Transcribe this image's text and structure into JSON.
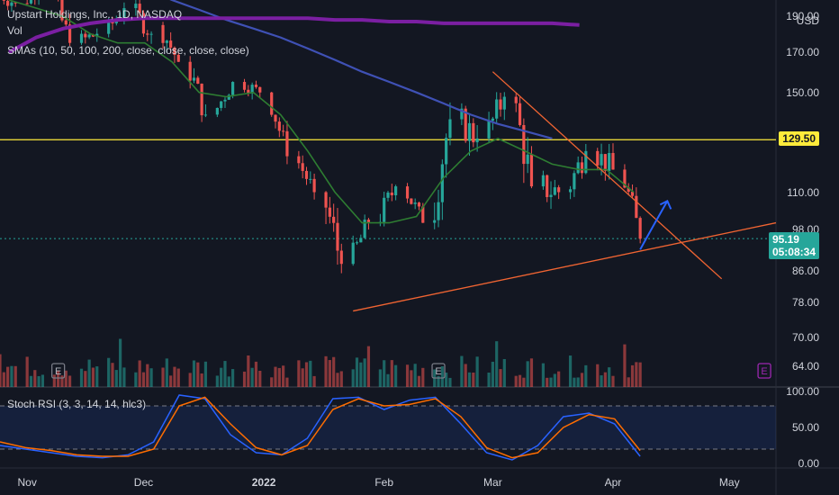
{
  "header": {
    "symbol_line": "Upstart Holdings, Inc., 1D, NASDAQ",
    "vol_label": "Vol",
    "sma_label": "SMAs (10, 50, 100, 200, close, close, close, close)"
  },
  "price_axis": {
    "currency": "USD",
    "ticks": [
      "190.00",
      "170.00",
      "150.00",
      "129.50",
      "110.00",
      "98.00",
      "86.00",
      "78.00",
      "70.00",
      "64.00"
    ],
    "resistance_level": "129.50",
    "last_price": "95.19",
    "countdown": "05:08:34"
  },
  "rsi_panel": {
    "label": "Stoch RSI (3, 3, 14, 14, hlc3)",
    "ticks": [
      "100.00",
      "50.00",
      "0.00"
    ],
    "upper_band": 80,
    "lower_band": 20
  },
  "time_axis": {
    "labels": [
      "Nov",
      "Dec",
      "2022",
      "Feb",
      "Mar",
      "Apr",
      "May"
    ]
  },
  "earnings_markers": [
    "E",
    "E",
    "E"
  ],
  "colors": {
    "background": "#131722",
    "up": "#26a69a",
    "down": "#ef5350",
    "resistance": "#ffeb3b",
    "trendline": "#f06432",
    "sma_fast": "#2e7d32",
    "sma_mid": "#3f51b5",
    "sma_slow": "#7b1fa2",
    "stoch_k": "#2962ff",
    "stoch_d": "#ff6d00",
    "arrow": "#2962ff"
  },
  "chart_data": {
    "type": "candlestick",
    "title": "Upstart Holdings, Inc., 1D, NASDAQ",
    "y_unit": "USD",
    "log_scale": true,
    "ylim": [
      60,
      195
    ],
    "horizontal_level": 129.5,
    "last_close": 95.19,
    "x_range": [
      "2021-10-25",
      "2022-05-13"
    ],
    "candles_weekly_summary": [
      {
        "date": "2021-10-25",
        "open": 205,
        "high": 220,
        "low": 190,
        "close": 198
      },
      {
        "date": "2021-11-01",
        "open": 198,
        "high": 215,
        "low": 188,
        "close": 210
      },
      {
        "date": "2021-11-08",
        "open": 205,
        "high": 215,
        "low": 170,
        "close": 175
      },
      {
        "date": "2021-11-15",
        "open": 175,
        "high": 195,
        "low": 165,
        "close": 180
      },
      {
        "date": "2021-11-22",
        "open": 180,
        "high": 200,
        "low": 170,
        "close": 195
      },
      {
        "date": "2021-11-29",
        "open": 195,
        "high": 205,
        "low": 170,
        "close": 180
      },
      {
        "date": "2021-12-06",
        "open": 185,
        "high": 195,
        "low": 160,
        "close": 165
      },
      {
        "date": "2021-12-13",
        "open": 165,
        "high": 168,
        "low": 132,
        "close": 140
      },
      {
        "date": "2021-12-20",
        "open": 140,
        "high": 160,
        "low": 135,
        "close": 155
      },
      {
        "date": "2021-12-27",
        "open": 155,
        "high": 165,
        "low": 145,
        "close": 150
      },
      {
        "date": "2022-01-03",
        "open": 150,
        "high": 152,
        "low": 120,
        "close": 123
      },
      {
        "date": "2022-01-10",
        "open": 123,
        "high": 125,
        "low": 105,
        "close": 110
      },
      {
        "date": "2022-01-17",
        "open": 110,
        "high": 112,
        "low": 76,
        "close": 88
      },
      {
        "date": "2022-01-24",
        "open": 88,
        "high": 105,
        "low": 84,
        "close": 100
      },
      {
        "date": "2022-01-31",
        "open": 100,
        "high": 118,
        "low": 95,
        "close": 112
      },
      {
        "date": "2022-02-07",
        "open": 112,
        "high": 116,
        "low": 96,
        "close": 100
      },
      {
        "date": "2022-02-14",
        "open": 100,
        "high": 150,
        "low": 98,
        "close": 138
      },
      {
        "date": "2022-02-21",
        "open": 138,
        "high": 145,
        "low": 105,
        "close": 130
      },
      {
        "date": "2022-02-28",
        "open": 130,
        "high": 162,
        "low": 125,
        "close": 148
      },
      {
        "date": "2022-03-07",
        "open": 148,
        "high": 150,
        "low": 100,
        "close": 112
      },
      {
        "date": "2022-03-14",
        "open": 112,
        "high": 118,
        "low": 86,
        "close": 110
      },
      {
        "date": "2022-03-21",
        "open": 110,
        "high": 135,
        "low": 105,
        "close": 125
      },
      {
        "date": "2022-03-28",
        "open": 125,
        "high": 130,
        "low": 102,
        "close": 118
      },
      {
        "date": "2022-04-04",
        "open": 118,
        "high": 120,
        "low": 92,
        "close": 95.19
      }
    ],
    "volume_bars_note": "volume histogram in lower part of main pane",
    "sma_series": [
      {
        "period": "SMA fast",
        "values": [
          200,
          195,
          190,
          180,
          175,
          175,
          165,
          150,
          148,
          150,
          140,
          125,
          110,
          100,
          100,
          102,
          115,
          125,
          130,
          125,
          120,
          118,
          118,
          110
        ]
      },
      {
        "period": "SMA mid",
        "values": [
          240,
          232,
          228,
          222,
          215,
          208,
          200,
          194,
          188,
          183,
          178,
          172,
          166,
          160,
          155,
          150,
          145,
          140,
          136,
          133,
          130,
          null,
          null,
          null
        ]
      },
      {
        "period": "SMA slow",
        "values": [
          170,
          178,
          183,
          186,
          188,
          189,
          189,
          189,
          189,
          189,
          189,
          189,
          188,
          188,
          187,
          187,
          186,
          186,
          186,
          186,
          186,
          185,
          null,
          null
        ]
      }
    ],
    "trendlines": [
      {
        "name": "descending resistance",
        "from": {
          "date": "2022-03-01",
          "price": 160
        },
        "to": {
          "date": "2022-04-29",
          "price": 84
        }
      },
      {
        "name": "ascending support",
        "from": {
          "date": "2022-01-24",
          "price": 76
        },
        "to": {
          "date": "2022-05-13",
          "price": 100
        }
      }
    ],
    "stoch_rsi": {
      "ylim": [
        0,
        100
      ],
      "k_values": [
        25,
        20,
        15,
        10,
        8,
        12,
        30,
        95,
        90,
        40,
        15,
        12,
        35,
        90,
        92,
        75,
        88,
        92,
        55,
        15,
        5,
        25,
        65,
        70,
        55,
        10
      ],
      "d_values": [
        30,
        22,
        18,
        12,
        10,
        10,
        20,
        80,
        92,
        55,
        22,
        12,
        25,
        75,
        90,
        80,
        82,
        90,
        65,
        22,
        8,
        15,
        50,
        68,
        62,
        18
      ]
    }
  }
}
